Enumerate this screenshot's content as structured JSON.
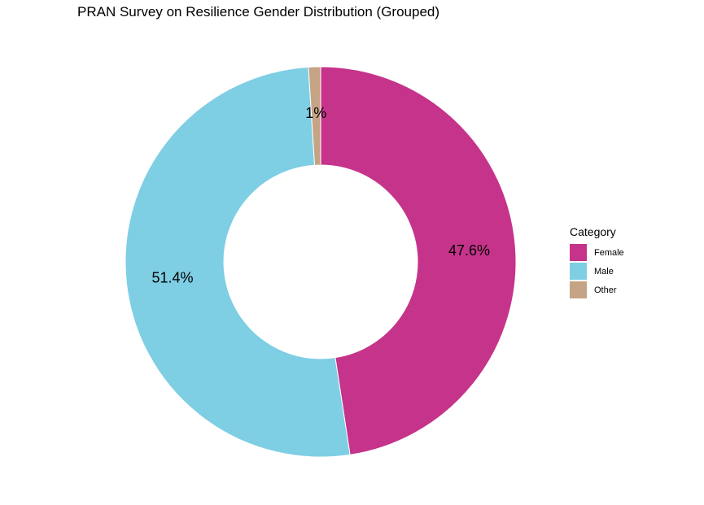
{
  "chart_data": {
    "type": "pie",
    "variant": "donut",
    "title": "PRAN Survey on Resilience Gender Distribution (Grouped)",
    "legend_title": "Category",
    "legend_position": "right",
    "categories": [
      "Female",
      "Male",
      "Other"
    ],
    "values": [
      47.6,
      51.4,
      1.0
    ],
    "labels": [
      "47.6%",
      "51.4%",
      "1%"
    ],
    "colors": [
      "#C6338A",
      "#7ECEE4",
      "#C4A484"
    ]
  }
}
